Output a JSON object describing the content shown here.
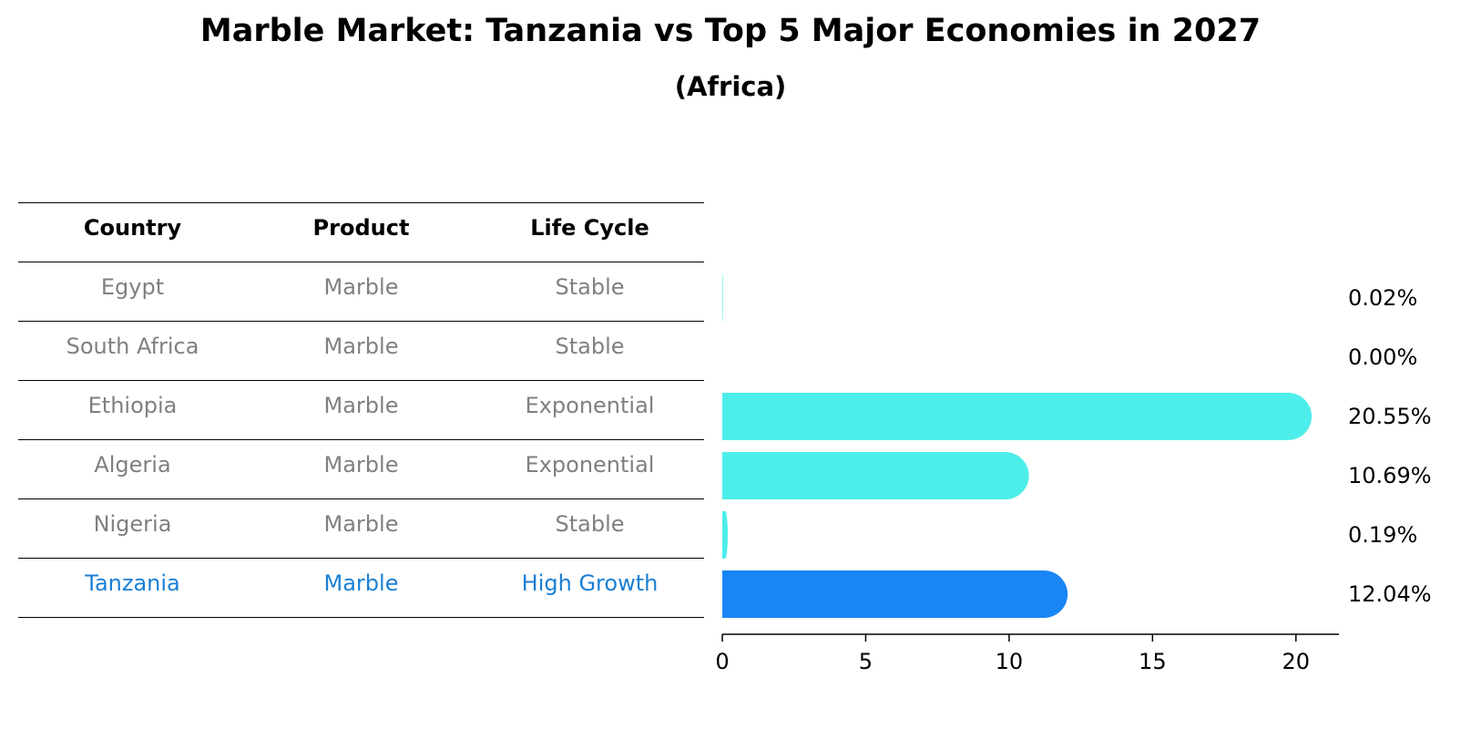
{
  "title": "Marble Market: Tanzania vs Top 5 Major Economies in 2027",
  "subtitle": "(Africa)",
  "table": {
    "headers": [
      "Country",
      "Product",
      "Life Cycle"
    ],
    "rows": [
      {
        "country": "Egypt",
        "product": "Marble",
        "life_cycle": "Stable"
      },
      {
        "country": "South Africa",
        "product": "Marble",
        "life_cycle": "Stable"
      },
      {
        "country": "Ethiopia",
        "product": "Marble",
        "life_cycle": "Exponential"
      },
      {
        "country": "Algeria",
        "product": "Marble",
        "life_cycle": "Exponential"
      },
      {
        "country": "Nigeria",
        "product": "Marble",
        "life_cycle": "Stable"
      },
      {
        "country": "Tanzania",
        "product": "Marble",
        "life_cycle": "High Growth"
      }
    ]
  },
  "colors": {
    "bar": "#4deeea",
    "highlight": "#1a85f5",
    "highlight_text": "#1a7fd4",
    "muted_text": "#808080"
  },
  "chart_data": {
    "type": "bar",
    "orientation": "horizontal",
    "categories": [
      "Egypt",
      "South Africa",
      "Ethiopia",
      "Algeria",
      "Nigeria",
      "Tanzania"
    ],
    "values": [
      0.02,
      0.0,
      20.55,
      10.69,
      0.19,
      12.04
    ],
    "value_labels": [
      "0.02%",
      "0.00%",
      "20.55%",
      "10.69%",
      "0.19%",
      "12.04%"
    ],
    "highlight": "Tanzania",
    "xlim": [
      0,
      21.5
    ],
    "xticks": [
      0,
      5,
      10,
      15,
      20
    ],
    "xtick_labels": [
      "0",
      "5",
      "10",
      "15",
      "20"
    ],
    "xlabel": "",
    "ylabel": "",
    "grid": false
  }
}
